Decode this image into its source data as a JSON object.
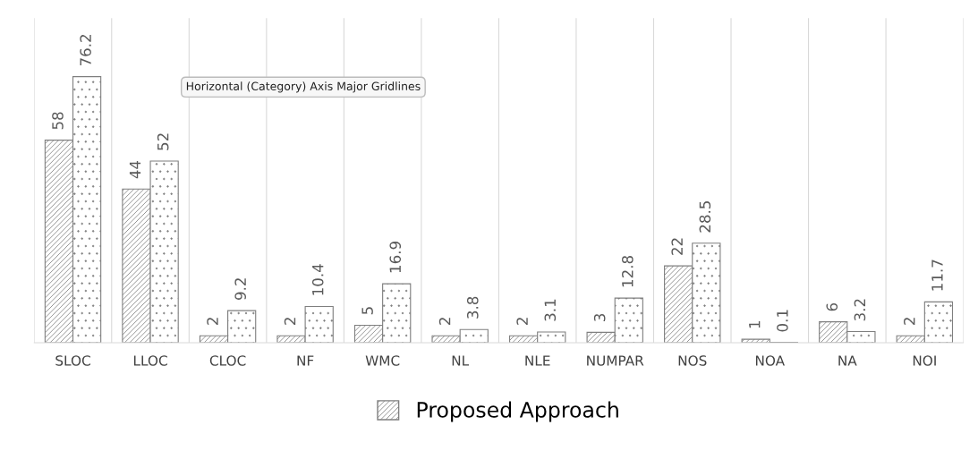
{
  "chart_data": {
    "type": "bar",
    "categories": [
      "SLOC",
      "LLOC",
      "CLOC",
      "NF",
      "WMC",
      "NL",
      "NLE",
      "NUMPAR",
      "NOS",
      "NOA",
      "NA",
      "NOI"
    ],
    "series": [
      {
        "name": "Proposed Approach",
        "color": "#7f7f7f",
        "values": [
          58,
          44,
          2,
          2,
          5,
          2,
          2,
          3,
          22,
          1,
          6,
          2
        ]
      },
      {
        "color": "#7f7f7f",
        "values": [
          76.2,
          52,
          9.2,
          10.4,
          16.9,
          3.8,
          3.1,
          12.8,
          28.5,
          0.1,
          3.2,
          11.7
        ]
      }
    ],
    "data_labels": true,
    "grid": "x",
    "legend": "bottom",
    "annotations": [
      "Horizontal (Category) Axis Major Gridlines"
    ]
  }
}
